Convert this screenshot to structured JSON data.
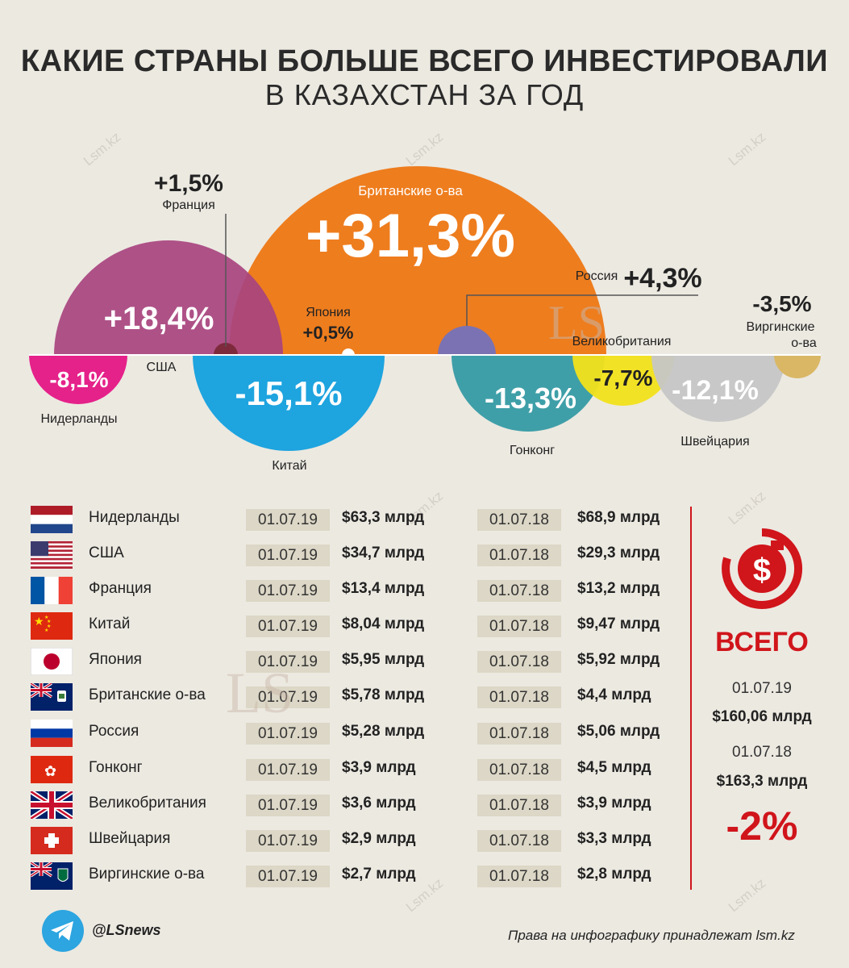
{
  "header": {
    "title": "КАКИЕ СТРАНЫ БОЛЬШЕ ВСЕГО ИНВЕСТИРОВАЛИ",
    "subtitle": "В КАЗАХСТАН ЗА ГОД"
  },
  "chart_data": {
    "type": "bubble",
    "title": "КАКИЕ СТРАНЫ БОЛЬШЕ ВСЕГО ИНВЕСТИРОВАЛИ В КАЗАХСТАН ЗА ГОД",
    "series": [
      {
        "name": "Британские о-ва",
        "change": "+31,3%",
        "value": 31.3,
        "color": "#ee7d1e"
      },
      {
        "name": "США",
        "change": "+18,4%",
        "value": 18.4,
        "color": "#a8437f"
      },
      {
        "name": "Россия",
        "change": "+4,3%",
        "value": 4.3,
        "color": "#7b72b3"
      },
      {
        "name": "Франция",
        "change": "+1,5%",
        "value": 1.5,
        "color": "#7d2a3c"
      },
      {
        "name": "Япония",
        "change": "+0,5%",
        "value": 0.5,
        "color": "#ffffff"
      },
      {
        "name": "Китай",
        "change": "-15,1%",
        "value": -15.1,
        "color": "#1ea4df"
      },
      {
        "name": "Гонконг",
        "change": "-13,3%",
        "value": -13.3,
        "color": "#3f9fa8"
      },
      {
        "name": "Швейцария",
        "change": "-12,1%",
        "value": -12.1,
        "color": "#c6c6c6"
      },
      {
        "name": "Нидерланды",
        "change": "-8,1%",
        "value": -8.1,
        "color": "#e5218a"
      },
      {
        "name": "Великобритания",
        "change": "-7,7%",
        "value": -7.7,
        "color": "#f2e21a"
      },
      {
        "name": "Виргинские о-ва",
        "change": "-3,5%",
        "value": -3.5,
        "color": "#d9b765"
      }
    ]
  },
  "table": {
    "date_new": "01.07.19",
    "date_old": "01.07.18",
    "rows": [
      {
        "country": "Нидерланды",
        "flag": "netherlands-flag",
        "new": "$63,3 млрд",
        "old": "$68,9 млрд"
      },
      {
        "country": "США",
        "flag": "usa-flag",
        "new": "$34,7 млрд",
        "old": "$29,3 млрд"
      },
      {
        "country": "Франция",
        "flag": "france-flag",
        "new": "$13,4 млрд",
        "old": "$13,2 млрд"
      },
      {
        "country": "Китай",
        "flag": "china-flag",
        "new": "$8,04 млрд",
        "old": "$9,47 млрд"
      },
      {
        "country": "Япония",
        "flag": "japan-flag",
        "new": "$5,95 млрд",
        "old": "$5,92 млрд"
      },
      {
        "country": "Британские о-ва",
        "flag": "british-islands-flag",
        "new": "$5,78 млрд",
        "old": "$4,4 млрд"
      },
      {
        "country": "Россия",
        "flag": "russia-flag",
        "new": "$5,28 млрд",
        "old": "$5,06 млрд"
      },
      {
        "country": "Гонконг",
        "flag": "hongkong-flag",
        "new": "$3,9 млрд",
        "old": "$4,5 млрд"
      },
      {
        "country": "Великобритания",
        "flag": "uk-flag",
        "new": "$3,6 млрд",
        "old": "$3,9 млрд"
      },
      {
        "country": "Швейцария",
        "flag": "switzerland-flag",
        "new": "$2,9 млрд",
        "old": "$3,3 млрд"
      },
      {
        "country": "Виргинские о-ва",
        "flag": "virgin-islands-flag",
        "new": "$2,7 млрд",
        "old": "$2,8 млрд"
      }
    ]
  },
  "total": {
    "label": "ВСЕГО",
    "date_new": "01.07.19",
    "amount_new": "$160,06 млрд",
    "date_old": "01.07.18",
    "amount_old": "$163,3 млрд",
    "change": "-2%",
    "icon": "dollar-cycle-icon"
  },
  "footer": {
    "handle": "@LSnews",
    "rights": "Права на инфографику принадлежат lsm.kz",
    "icon": "telegram-icon"
  },
  "watermark": "Lsm.kz",
  "logo_text": "LS"
}
